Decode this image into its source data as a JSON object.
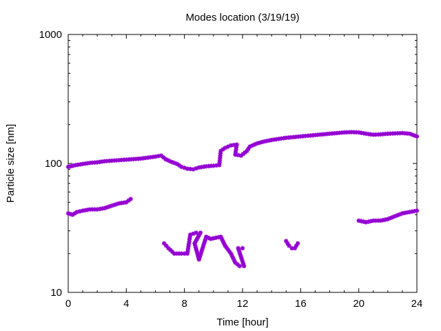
{
  "chart_data": {
    "type": "scatter",
    "title": "Modes location (3/19/19)",
    "xlabel": "Time [hour]",
    "ylabel": "Particle size [nm]",
    "xlim": [
      0,
      24
    ],
    "ylim": [
      10,
      1000
    ],
    "yscale": "log",
    "grid": false,
    "legend": "none",
    "x_ticks": [
      0,
      4,
      8,
      12,
      16,
      20,
      24
    ],
    "x_tick_labels": [
      "0",
      "4",
      "8",
      "12",
      "16",
      "20",
      "24"
    ],
    "y_ticks": [
      10,
      100,
      1000
    ],
    "y_tick_labels": [
      "10",
      "100",
      "1000"
    ],
    "marker_color": "#9400d3",
    "series": [
      {
        "values": [
          [
            0.0,
            94
          ],
          [
            0.5,
            97
          ],
          [
            1.0,
            99
          ],
          [
            1.5,
            101
          ],
          [
            2.0,
            102
          ],
          [
            2.5,
            104
          ],
          [
            3.0,
            105
          ],
          [
            3.5,
            106
          ],
          [
            4.0,
            107
          ],
          [
            4.5,
            108
          ],
          [
            5.0,
            109
          ],
          [
            5.5,
            111
          ],
          [
            6.0,
            113
          ],
          [
            6.4,
            115
          ],
          [
            6.7,
            108
          ],
          [
            7.0,
            104
          ],
          [
            7.5,
            99
          ],
          [
            7.8,
            94
          ],
          [
            8.2,
            91
          ],
          [
            8.6,
            90
          ],
          [
            9.0,
            93
          ],
          [
            9.5,
            95
          ],
          [
            10.0,
            96
          ],
          [
            10.4,
            97
          ],
          [
            10.5,
            125
          ],
          [
            10.8,
            132
          ],
          [
            11.2,
            138
          ],
          [
            11.6,
            140
          ],
          [
            11.5,
            117
          ],
          [
            11.9,
            115
          ],
          [
            12.3,
            125
          ],
          [
            12.5,
            135
          ],
          [
            13.0,
            143
          ],
          [
            13.5,
            148
          ],
          [
            14.0,
            152
          ],
          [
            14.5,
            155
          ],
          [
            15.0,
            158
          ],
          [
            15.5,
            160
          ],
          [
            16.0,
            162
          ],
          [
            16.5,
            164
          ],
          [
            17.0,
            166
          ],
          [
            17.5,
            168
          ],
          [
            18.0,
            170
          ],
          [
            18.5,
            172
          ],
          [
            19.0,
            174
          ],
          [
            19.5,
            175
          ],
          [
            20.0,
            174
          ],
          [
            20.5,
            170
          ],
          [
            21.0,
            167
          ],
          [
            21.5,
            168
          ],
          [
            22.0,
            170
          ],
          [
            22.5,
            171
          ],
          [
            23.0,
            172
          ],
          [
            23.5,
            170
          ],
          [
            24.0,
            162
          ]
        ]
      },
      {
        "values": [
          [
            0.0,
            41
          ],
          [
            0.3,
            40
          ],
          [
            0.6,
            42
          ],
          [
            1.0,
            43
          ],
          [
            1.5,
            44
          ],
          [
            2.0,
            44
          ],
          [
            2.5,
            45
          ],
          [
            3.0,
            47
          ],
          [
            3.5,
            49
          ],
          [
            4.0,
            50
          ],
          [
            4.3,
            53
          ]
        ]
      },
      {
        "values": [
          [
            20.0,
            36
          ],
          [
            20.5,
            35
          ],
          [
            21.0,
            36
          ],
          [
            21.5,
            36
          ],
          [
            22.0,
            37
          ],
          [
            22.5,
            39
          ],
          [
            23.0,
            41
          ],
          [
            23.5,
            42
          ],
          [
            24.0,
            43
          ]
        ]
      },
      {
        "values": [
          [
            6.6,
            24
          ],
          [
            6.9,
            22
          ],
          [
            7.3,
            20
          ],
          [
            7.8,
            20
          ],
          [
            8.2,
            20
          ],
          [
            8.4,
            28
          ],
          [
            8.8,
            29
          ],
          [
            9.1,
            29
          ],
          [
            8.7,
            24
          ],
          [
            9.0,
            18
          ],
          [
            9.5,
            27
          ],
          [
            9.8,
            26
          ],
          [
            10.5,
            27
          ],
          [
            10.8,
            23
          ],
          [
            11.2,
            20
          ],
          [
            11.5,
            17
          ],
          [
            11.8,
            16
          ],
          [
            12.1,
            16
          ],
          [
            11.7,
            22
          ],
          [
            12.0,
            22
          ]
        ]
      },
      {
        "values": [
          [
            15.0,
            25
          ],
          [
            15.2,
            23
          ],
          [
            15.4,
            22
          ],
          [
            15.6,
            22
          ],
          [
            15.8,
            24
          ]
        ]
      }
    ]
  }
}
